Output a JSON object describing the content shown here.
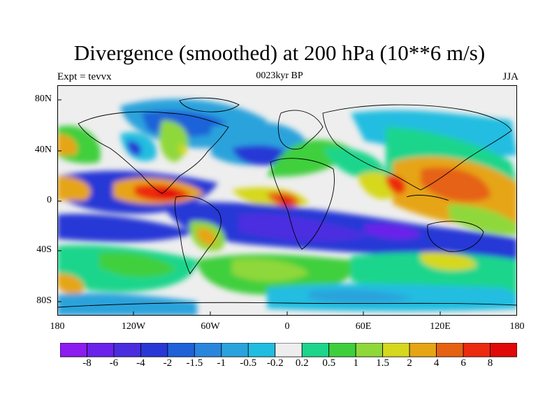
{
  "title": "Divergence (smoothed) at 200 hPa (10**6 m/s)",
  "left_label": "Expt = tevvx",
  "center_label": "0023kyr BP",
  "right_label": "JJA",
  "y_ticks": [
    "80N",
    "40N",
    "0",
    "40S",
    "80S"
  ],
  "x_ticks": [
    "180",
    "120W",
    "60W",
    "0",
    "60E",
    "120E",
    "180"
  ],
  "colorbar": {
    "labels": [
      "-8",
      "-6",
      "-4",
      "-2",
      "-1.5",
      "-1",
      "-0.5",
      "-0.2",
      "0.2",
      "0.5",
      "1",
      "1.5",
      "2",
      "4",
      "6",
      "8"
    ],
    "colors": [
      "#8c1cf0",
      "#6a22ea",
      "#4b2de0",
      "#2838d6",
      "#1f62d8",
      "#2a86dd",
      "#2aa3dc",
      "#21bde0",
      "#eeeeee",
      "#1ed58c",
      "#3fcf3c",
      "#8fd83a",
      "#d6d81e",
      "#e6a514",
      "#e66212",
      "#ec2a10",
      "#e00808"
    ]
  }
}
